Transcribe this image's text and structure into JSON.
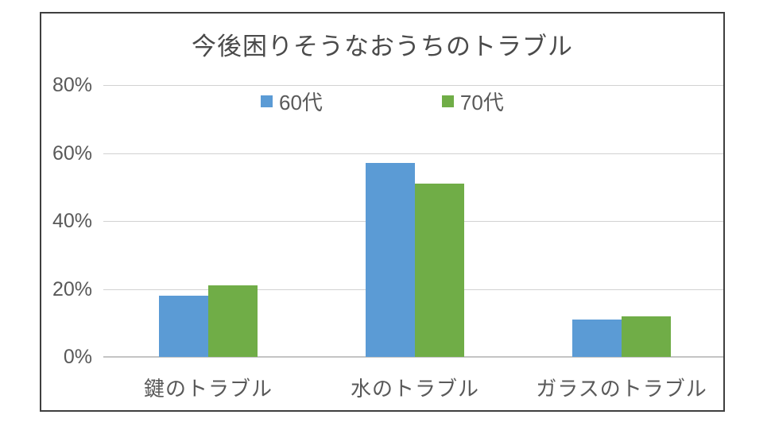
{
  "chart_data": {
    "type": "bar",
    "title": "今後困りそうなおうちのトラブル",
    "categories": [
      "鍵のトラブル",
      "水のトラブル",
      "ガラスのトラブル"
    ],
    "series": [
      {
        "name": "60代",
        "color": "#5B9BD5",
        "values": [
          18,
          57,
          11
        ]
      },
      {
        "name": "70代",
        "color": "#70AD47",
        "values": [
          21,
          51,
          12
        ]
      }
    ],
    "ylim": [
      0,
      80
    ],
    "yticks": [
      {
        "value": 0,
        "label": "0%"
      },
      {
        "value": 20,
        "label": "20%"
      },
      {
        "value": 40,
        "label": "40%"
      },
      {
        "value": 60,
        "label": "60%"
      },
      {
        "value": 80,
        "label": "80%"
      }
    ],
    "grid": true,
    "legend_position": "top",
    "frame_border_color": "#3f3f3f",
    "gridline_color": "#d2d2d2",
    "text_color": "#595959"
  }
}
